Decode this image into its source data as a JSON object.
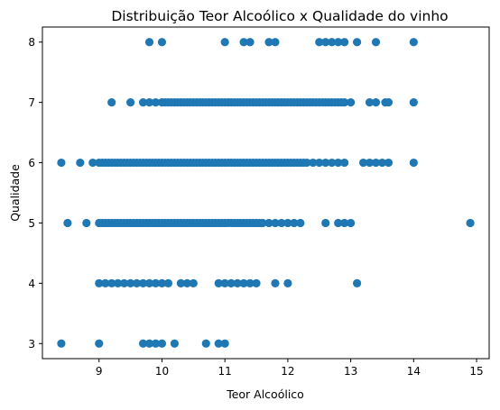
{
  "chart_data": {
    "type": "scatter",
    "title": "Distribuição Teor Alcoólico x Qualidade do vinho",
    "xlabel": "Teor Alcoólico",
    "ylabel": "Qualidade",
    "xlim": [
      8.1,
      15.2
    ],
    "ylim": [
      2.75,
      8.25
    ],
    "xticks": [
      9,
      10,
      11,
      12,
      13,
      14,
      15
    ],
    "yticks": [
      3,
      4,
      5,
      6,
      7,
      8
    ],
    "grid": false,
    "marker_color": "#1f77b4",
    "series": [
      {
        "points": [
          [
            8.4,
            3
          ],
          [
            9.0,
            3
          ],
          [
            9.7,
            3
          ],
          [
            9.8,
            3
          ],
          [
            9.9,
            3
          ],
          [
            10.0,
            3
          ],
          [
            10.2,
            3
          ],
          [
            10.7,
            3
          ],
          [
            10.9,
            3
          ],
          [
            11.0,
            3
          ],
          [
            9.0,
            4
          ],
          [
            9.1,
            4
          ],
          [
            9.2,
            4
          ],
          [
            9.3,
            4
          ],
          [
            9.4,
            4
          ],
          [
            9.5,
            4
          ],
          [
            9.6,
            4
          ],
          [
            9.7,
            4
          ],
          [
            9.8,
            4
          ],
          [
            9.9,
            4
          ],
          [
            10.0,
            4
          ],
          [
            10.1,
            4
          ],
          [
            10.3,
            4
          ],
          [
            10.4,
            4
          ],
          [
            10.5,
            4
          ],
          [
            10.9,
            4
          ],
          [
            11.0,
            4
          ],
          [
            11.1,
            4
          ],
          [
            11.2,
            4
          ],
          [
            11.3,
            4
          ],
          [
            11.4,
            4
          ],
          [
            11.5,
            4
          ],
          [
            11.8,
            4
          ],
          [
            12.0,
            4
          ],
          [
            13.1,
            4
          ],
          [
            8.5,
            5
          ],
          [
            8.8,
            5
          ],
          [
            9.0,
            5
          ],
          [
            9.05,
            5
          ],
          [
            9.1,
            5
          ],
          [
            9.15,
            5
          ],
          [
            9.2,
            5
          ],
          [
            9.25,
            5
          ],
          [
            9.3,
            5
          ],
          [
            9.35,
            5
          ],
          [
            9.4,
            5
          ],
          [
            9.45,
            5
          ],
          [
            9.5,
            5
          ],
          [
            9.55,
            5
          ],
          [
            9.6,
            5
          ],
          [
            9.65,
            5
          ],
          [
            9.7,
            5
          ],
          [
            9.75,
            5
          ],
          [
            9.8,
            5
          ],
          [
            9.85,
            5
          ],
          [
            9.9,
            5
          ],
          [
            9.95,
            5
          ],
          [
            10.0,
            5
          ],
          [
            10.05,
            5
          ],
          [
            10.1,
            5
          ],
          [
            10.15,
            5
          ],
          [
            10.2,
            5
          ],
          [
            10.25,
            5
          ],
          [
            10.3,
            5
          ],
          [
            10.35,
            5
          ],
          [
            10.4,
            5
          ],
          [
            10.45,
            5
          ],
          [
            10.5,
            5
          ],
          [
            10.55,
            5
          ],
          [
            10.6,
            5
          ],
          [
            10.65,
            5
          ],
          [
            10.7,
            5
          ],
          [
            10.75,
            5
          ],
          [
            10.8,
            5
          ],
          [
            10.85,
            5
          ],
          [
            10.9,
            5
          ],
          [
            10.95,
            5
          ],
          [
            11.0,
            5
          ],
          [
            11.05,
            5
          ],
          [
            11.1,
            5
          ],
          [
            11.15,
            5
          ],
          [
            11.2,
            5
          ],
          [
            11.25,
            5
          ],
          [
            11.3,
            5
          ],
          [
            11.35,
            5
          ],
          [
            11.4,
            5
          ],
          [
            11.45,
            5
          ],
          [
            11.5,
            5
          ],
          [
            11.55,
            5
          ],
          [
            11.6,
            5
          ],
          [
            11.7,
            5
          ],
          [
            11.8,
            5
          ],
          [
            11.9,
            5
          ],
          [
            12.0,
            5
          ],
          [
            12.1,
            5
          ],
          [
            12.2,
            5
          ],
          [
            12.6,
            5
          ],
          [
            12.8,
            5
          ],
          [
            12.9,
            5
          ],
          [
            13.0,
            5
          ],
          [
            14.9,
            5
          ],
          [
            8.4,
            6
          ],
          [
            8.7,
            6
          ],
          [
            8.9,
            6
          ],
          [
            9.0,
            6
          ],
          [
            9.05,
            6
          ],
          [
            9.1,
            6
          ],
          [
            9.15,
            6
          ],
          [
            9.2,
            6
          ],
          [
            9.25,
            6
          ],
          [
            9.3,
            6
          ],
          [
            9.35,
            6
          ],
          [
            9.4,
            6
          ],
          [
            9.45,
            6
          ],
          [
            9.5,
            6
          ],
          [
            9.55,
            6
          ],
          [
            9.6,
            6
          ],
          [
            9.65,
            6
          ],
          [
            9.7,
            6
          ],
          [
            9.75,
            6
          ],
          [
            9.8,
            6
          ],
          [
            9.85,
            6
          ],
          [
            9.9,
            6
          ],
          [
            9.95,
            6
          ],
          [
            10.0,
            6
          ],
          [
            10.05,
            6
          ],
          [
            10.1,
            6
          ],
          [
            10.15,
            6
          ],
          [
            10.2,
            6
          ],
          [
            10.25,
            6
          ],
          [
            10.3,
            6
          ],
          [
            10.35,
            6
          ],
          [
            10.4,
            6
          ],
          [
            10.45,
            6
          ],
          [
            10.5,
            6
          ],
          [
            10.55,
            6
          ],
          [
            10.6,
            6
          ],
          [
            10.65,
            6
          ],
          [
            10.7,
            6
          ],
          [
            10.75,
            6
          ],
          [
            10.8,
            6
          ],
          [
            10.85,
            6
          ],
          [
            10.9,
            6
          ],
          [
            10.95,
            6
          ],
          [
            11.0,
            6
          ],
          [
            11.05,
            6
          ],
          [
            11.1,
            6
          ],
          [
            11.15,
            6
          ],
          [
            11.2,
            6
          ],
          [
            11.25,
            6
          ],
          [
            11.3,
            6
          ],
          [
            11.35,
            6
          ],
          [
            11.4,
            6
          ],
          [
            11.45,
            6
          ],
          [
            11.5,
            6
          ],
          [
            11.55,
            6
          ],
          [
            11.6,
            6
          ],
          [
            11.65,
            6
          ],
          [
            11.7,
            6
          ],
          [
            11.75,
            6
          ],
          [
            11.8,
            6
          ],
          [
            11.85,
            6
          ],
          [
            11.9,
            6
          ],
          [
            11.95,
            6
          ],
          [
            12.0,
            6
          ],
          [
            12.05,
            6
          ],
          [
            12.1,
            6
          ],
          [
            12.15,
            6
          ],
          [
            12.2,
            6
          ],
          [
            12.25,
            6
          ],
          [
            12.3,
            6
          ],
          [
            12.4,
            6
          ],
          [
            12.5,
            6
          ],
          [
            12.6,
            6
          ],
          [
            12.7,
            6
          ],
          [
            12.8,
            6
          ],
          [
            12.9,
            6
          ],
          [
            13.2,
            6
          ],
          [
            13.3,
            6
          ],
          [
            13.4,
            6
          ],
          [
            13.5,
            6
          ],
          [
            13.6,
            6
          ],
          [
            14.0,
            6
          ],
          [
            9.2,
            7
          ],
          [
            9.5,
            7
          ],
          [
            9.7,
            7
          ],
          [
            9.8,
            7
          ],
          [
            9.9,
            7
          ],
          [
            10.0,
            7
          ],
          [
            10.05,
            7
          ],
          [
            10.1,
            7
          ],
          [
            10.15,
            7
          ],
          [
            10.2,
            7
          ],
          [
            10.25,
            7
          ],
          [
            10.3,
            7
          ],
          [
            10.35,
            7
          ],
          [
            10.4,
            7
          ],
          [
            10.45,
            7
          ],
          [
            10.5,
            7
          ],
          [
            10.55,
            7
          ],
          [
            10.6,
            7
          ],
          [
            10.65,
            7
          ],
          [
            10.7,
            7
          ],
          [
            10.75,
            7
          ],
          [
            10.8,
            7
          ],
          [
            10.85,
            7
          ],
          [
            10.9,
            7
          ],
          [
            10.95,
            7
          ],
          [
            11.0,
            7
          ],
          [
            11.05,
            7
          ],
          [
            11.1,
            7
          ],
          [
            11.15,
            7
          ],
          [
            11.2,
            7
          ],
          [
            11.25,
            7
          ],
          [
            11.3,
            7
          ],
          [
            11.35,
            7
          ],
          [
            11.4,
            7
          ],
          [
            11.45,
            7
          ],
          [
            11.5,
            7
          ],
          [
            11.55,
            7
          ],
          [
            11.6,
            7
          ],
          [
            11.65,
            7
          ],
          [
            11.7,
            7
          ],
          [
            11.75,
            7
          ],
          [
            11.8,
            7
          ],
          [
            11.85,
            7
          ],
          [
            11.9,
            7
          ],
          [
            11.95,
            7
          ],
          [
            12.0,
            7
          ],
          [
            12.05,
            7
          ],
          [
            12.1,
            7
          ],
          [
            12.15,
            7
          ],
          [
            12.2,
            7
          ],
          [
            12.25,
            7
          ],
          [
            12.3,
            7
          ],
          [
            12.35,
            7
          ],
          [
            12.4,
            7
          ],
          [
            12.45,
            7
          ],
          [
            12.5,
            7
          ],
          [
            12.55,
            7
          ],
          [
            12.6,
            7
          ],
          [
            12.65,
            7
          ],
          [
            12.7,
            7
          ],
          [
            12.75,
            7
          ],
          [
            12.8,
            7
          ],
          [
            12.85,
            7
          ],
          [
            12.9,
            7
          ],
          [
            13.0,
            7
          ],
          [
            13.3,
            7
          ],
          [
            13.4,
            7
          ],
          [
            13.55,
            7
          ],
          [
            13.6,
            7
          ],
          [
            14.0,
            7
          ],
          [
            9.8,
            8
          ],
          [
            10.0,
            8
          ],
          [
            11.0,
            8
          ],
          [
            11.3,
            8
          ],
          [
            11.4,
            8
          ],
          [
            11.7,
            8
          ],
          [
            11.8,
            8
          ],
          [
            12.5,
            8
          ],
          [
            12.6,
            8
          ],
          [
            12.7,
            8
          ],
          [
            12.8,
            8
          ],
          [
            12.9,
            8
          ],
          [
            13.1,
            8
          ],
          [
            13.4,
            8
          ],
          [
            14.0,
            8
          ]
        ]
      }
    ]
  }
}
